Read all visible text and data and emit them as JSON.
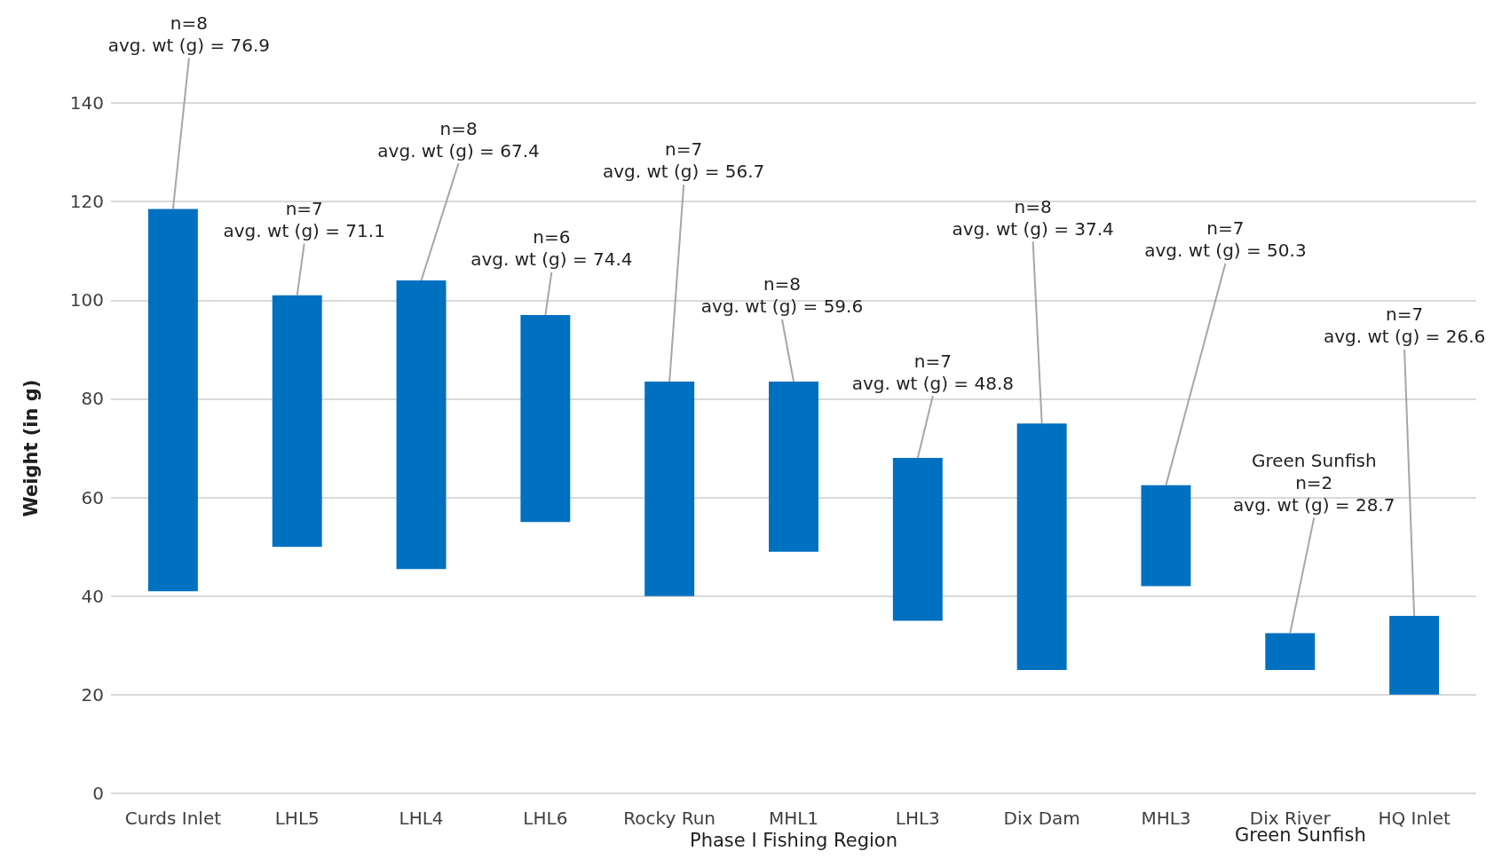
{
  "chart_data": {
    "type": "bar",
    "xlabel": "Phase I Fishing Region",
    "ylabel": "Weight (in g)",
    "categories": [
      "Curds Inlet",
      "LHL5",
      "LHL4",
      "LHL6",
      "Rocky Run",
      "MHL1",
      "LHL3",
      "Dix Dam",
      "MHL3",
      "Dix River",
      "HQ Inlet"
    ],
    "base": [
      41,
      50,
      45.5,
      55,
      40,
      49,
      35,
      25,
      42,
      25,
      20
    ],
    "values": [
      77.5,
      51,
      58.5,
      42,
      43.5,
      34.5,
      33,
      50,
      20.5,
      7.5,
      16
    ],
    "color": "#0070c0",
    "ylim": [
      0,
      140
    ],
    "yticks": [
      0,
      20,
      40,
      60,
      80,
      100,
      120,
      140
    ],
    "grid": "y",
    "annotations": [
      {
        "text": "n=8\navg. wt (g) = 76.9",
        "x": "Curds Inlet",
        "y": 118.5
      },
      {
        "text": "n=7\navg. wt (g) = 71.1",
        "x": "LHL5",
        "y": 101
      },
      {
        "text": "n=8\navg. wt (g) = 67.4",
        "x": "LHL4",
        "y": 104
      },
      {
        "text": "n=6\navg. wt (g) = 74.4",
        "x": "LHL6",
        "y": 97
      },
      {
        "text": "n=7\navg. wt (g) = 56.7",
        "x": "Rocky Run",
        "y": 83.5
      },
      {
        "text": "n=8\navg. wt (g) = 59.6",
        "x": "MHL1",
        "y": 83.5
      },
      {
        "text": "n=7\navg. wt (g) = 48.8",
        "x": "LHL3",
        "y": 68
      },
      {
        "text": "n=8\navg. wt (g) = 37.4",
        "x": "Dix Dam",
        "y": 75
      },
      {
        "text": "n=7\navg. wt (g) = 50.3",
        "x": "MHL3",
        "y": 62.5
      },
      {
        "text": "Green Sunfish\nn=2\navg. wt (g) = 28.7",
        "x": "Dix River",
        "y": 32.5
      },
      {
        "text": "n=7\navg. wt (g) = 26.6",
        "x": "HQ Inlet",
        "y": 36
      },
      "Green Sunfish"
    ]
  }
}
